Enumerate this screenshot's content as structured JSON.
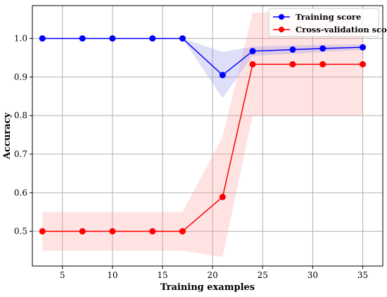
{
  "chart_data": {
    "type": "line",
    "xlabel": "Training examples",
    "ylabel": "Accuracy",
    "xlim": [
      2,
      37
    ],
    "ylim": [
      0.41,
      1.085
    ],
    "xticks": [
      5,
      10,
      15,
      20,
      25,
      30,
      35
    ],
    "yticks": [
      0.5,
      0.6,
      0.7,
      0.8,
      0.9,
      1.0
    ],
    "xtick_labels": [
      "5",
      "10",
      "15",
      "20",
      "25",
      "30",
      "35"
    ],
    "ytick_labels": [
      "0.5",
      "0.6",
      "0.7",
      "0.8",
      "0.9",
      "1.0"
    ],
    "grid": true,
    "legend_position": "top-right",
    "x": [
      3,
      7,
      10,
      14,
      17,
      21,
      24,
      28,
      31,
      35
    ],
    "series": [
      {
        "name": "Training score",
        "color": "#0000ff",
        "band_color": "#7f7fe8",
        "values": [
          1.0,
          1.0,
          1.0,
          1.0,
          1.0,
          0.905,
          0.967,
          0.971,
          0.974,
          0.977
        ],
        "lower": [
          1.0,
          1.0,
          1.0,
          1.0,
          1.0,
          0.845,
          0.955,
          0.96,
          0.965,
          0.97
        ],
        "upper": [
          1.0,
          1.0,
          1.0,
          1.0,
          1.0,
          0.965,
          0.979,
          0.982,
          0.983,
          0.984
        ]
      },
      {
        "name": "Cross-validation score",
        "color": "#ff0000",
        "band_color": "#ff9a9a",
        "values": [
          0.5,
          0.5,
          0.5,
          0.5,
          0.5,
          0.589,
          0.933,
          0.933,
          0.933,
          0.933
        ],
        "lower": [
          0.45,
          0.45,
          0.45,
          0.45,
          0.45,
          0.433,
          0.8,
          0.8,
          0.8,
          0.8
        ],
        "upper": [
          0.55,
          0.55,
          0.55,
          0.55,
          0.55,
          0.745,
          1.067,
          1.067,
          1.067,
          1.067
        ]
      }
    ]
  }
}
